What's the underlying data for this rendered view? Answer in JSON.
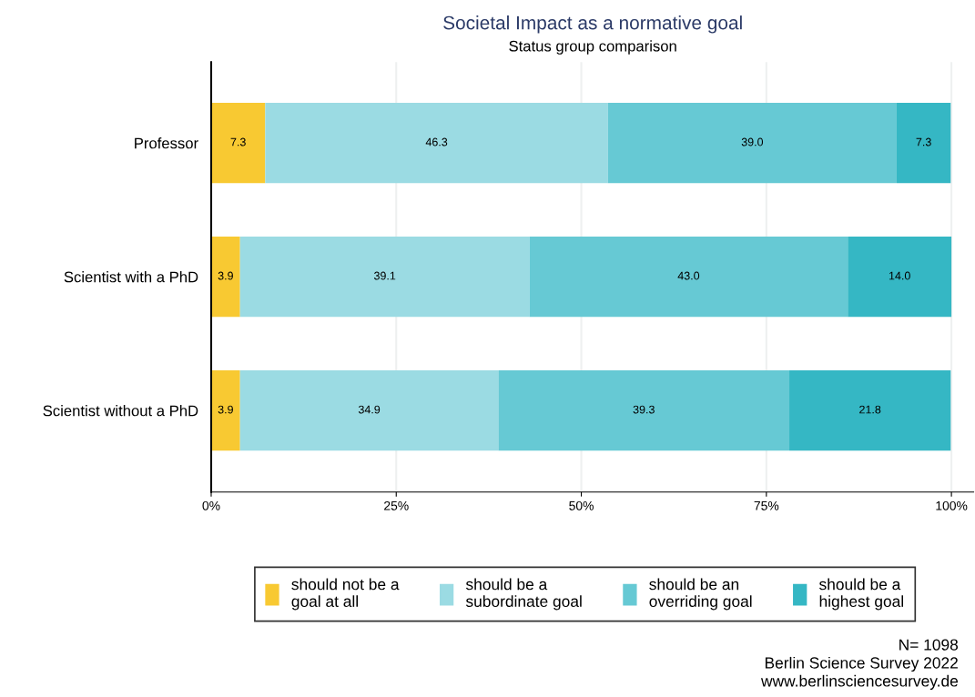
{
  "chart_data": {
    "type": "bar",
    "orientation": "horizontal",
    "stacked": true,
    "title": "Societal Impact as a normative goal",
    "subtitle": "Status group comparison",
    "categories": [
      "Professor",
      "Scientist with a PhD",
      "Scientist without a PhD"
    ],
    "series": [
      {
        "name": "should not be a\ngoal at all",
        "color": "#f8c932",
        "values": [
          7.3,
          3.9,
          3.9
        ],
        "value_labels": [
          "7.3",
          "3.9",
          "3.9"
        ]
      },
      {
        "name": "should be a\nsubordinate goal",
        "color": "#9bdbe3",
        "values": [
          46.3,
          39.1,
          34.9
        ],
        "value_labels": [
          "46.3",
          "39.1",
          "34.9"
        ]
      },
      {
        "name": "should be an\noverriding goal",
        "color": "#66c9d4",
        "values": [
          39.0,
          43.0,
          39.3
        ],
        "value_labels": [
          "39.0",
          "43.0",
          "39.3"
        ]
      },
      {
        "name": "should be a\nhighest goal",
        "color": "#35b7c4",
        "values": [
          7.3,
          14.0,
          21.8
        ],
        "value_labels": [
          "7.3",
          "14.0",
          "21.8"
        ]
      }
    ],
    "xlim": [
      0,
      103
    ],
    "xticks": [
      {
        "value": 0,
        "label": "0%"
      },
      {
        "value": 25,
        "label": "25%"
      },
      {
        "value": 50,
        "label": "50%"
      },
      {
        "value": 75,
        "label": "75%"
      },
      {
        "value": 100,
        "label": "100%"
      }
    ],
    "grid": "x",
    "legend": "bottom",
    "annotations": [
      "N= 1098",
      "Berlin Science Survey 2022",
      "www.berlinsciencesurvey.de"
    ]
  }
}
